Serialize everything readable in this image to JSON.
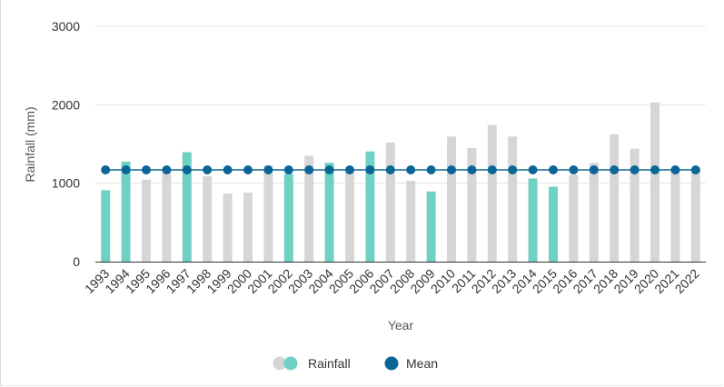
{
  "chart_data": {
    "type": "bar",
    "xlabel": "Year",
    "ylabel": "Rainfall (mm)",
    "ylim": [
      0,
      3000
    ],
    "yticks": [
      0,
      1000,
      2000,
      3000
    ],
    "grid": true,
    "legend_position": "bottom",
    "categories": [
      "1993",
      "1994",
      "1995",
      "1996",
      "1997",
      "1998",
      "1999",
      "2000",
      "2001",
      "2002",
      "2003",
      "2004",
      "2005",
      "2006",
      "2007",
      "2008",
      "2009",
      "2010",
      "2011",
      "2012",
      "2013",
      "2014",
      "2015",
      "2016",
      "2017",
      "2018",
      "2019",
      "2020",
      "2021",
      "2022"
    ],
    "series": [
      {
        "name": "Rainfall",
        "type": "bar",
        "values": [
          910,
          1275,
          1045,
          1140,
          1395,
          1090,
          870,
          880,
          1225,
          1120,
          1350,
          1260,
          1150,
          1405,
          1520,
          1030,
          895,
          1595,
          1450,
          1740,
          1595,
          1060,
          955,
          1110,
          1260,
          1625,
          1440,
          2030,
          1170,
          1180
        ],
        "highlighted": [
          true,
          true,
          false,
          false,
          true,
          false,
          false,
          false,
          false,
          true,
          false,
          true,
          false,
          true,
          false,
          false,
          true,
          false,
          false,
          false,
          false,
          true,
          true,
          false,
          false,
          false,
          false,
          false,
          false,
          false
        ]
      },
      {
        "name": "Mean",
        "type": "line",
        "values": [
          1170,
          1170,
          1170,
          1170,
          1170,
          1170,
          1170,
          1170,
          1170,
          1170,
          1170,
          1170,
          1170,
          1170,
          1170,
          1170,
          1170,
          1170,
          1170,
          1170,
          1170,
          1170,
          1170,
          1170,
          1170,
          1170,
          1170,
          1170,
          1170,
          1170
        ]
      }
    ],
    "colors": {
      "highlight_bar": "#6fd1c4",
      "normal_bar": "#d6d6d6",
      "mean": "#0b6696",
      "grid": "#e6e6e6",
      "axis": "#333333"
    }
  }
}
